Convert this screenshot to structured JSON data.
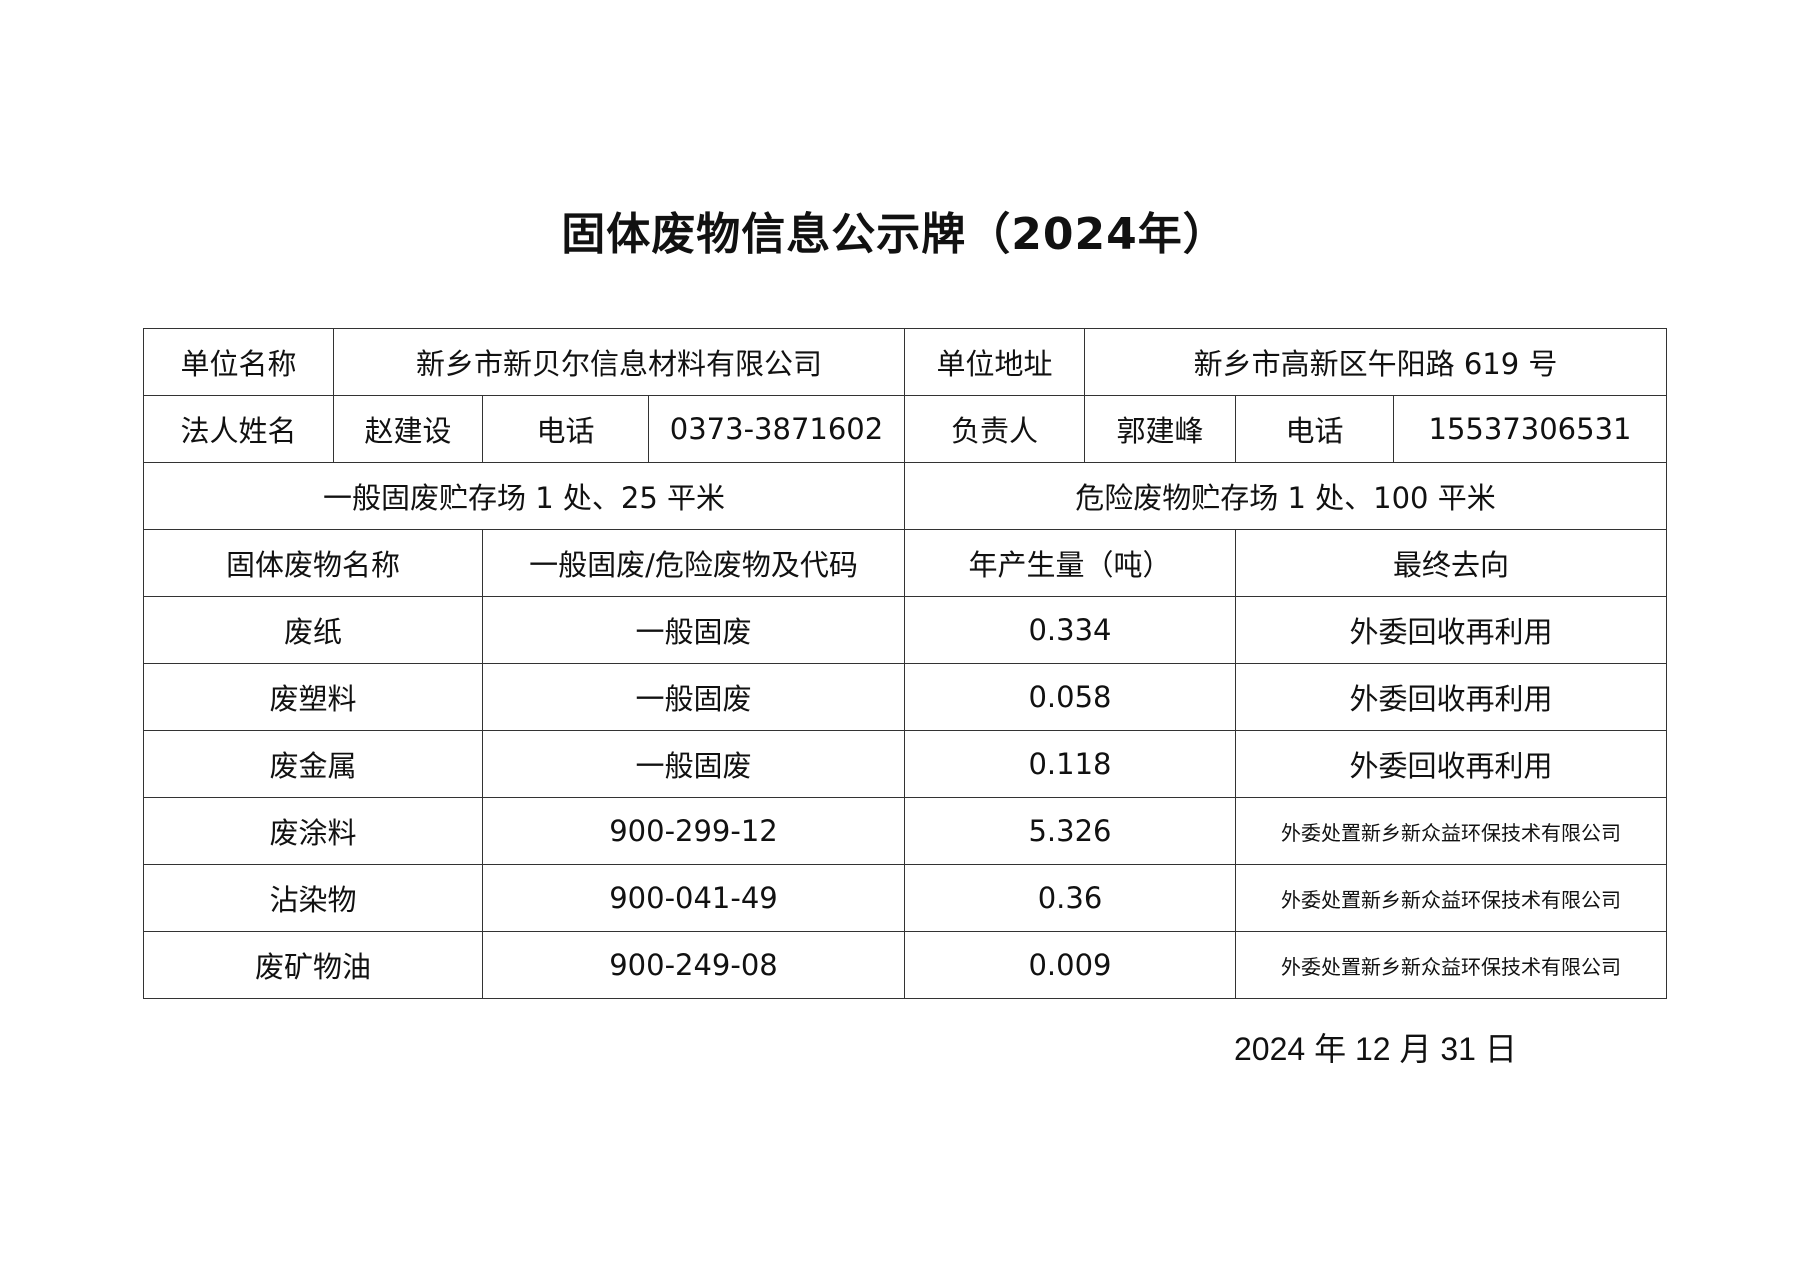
{
  "title": "固体废物信息公示牌（2024年）",
  "info": {
    "unit_name_label": "单位名称",
    "unit_name": "新乡市新贝尔信息材料有限公司",
    "address_label": "单位地址",
    "address": "新乡市高新区午阳路 619 号",
    "legal_label": "法人姓名",
    "legal_name": "赵建设",
    "phone_label": "电话",
    "legal_phone": "0373-3871602",
    "manager_label": "负责人",
    "manager_name": "郭建峰",
    "manager_phone": "15537306531",
    "general_storage": "一般固废贮存场 1 处、25 平米",
    "hazardous_storage": "危险废物贮存场 1 处、100 平米"
  },
  "headers": [
    "固体废物名称",
    "一般固废/危险废物及代码",
    "年产生量（吨）",
    "最终去向"
  ],
  "rows": [
    {
      "name": "废纸",
      "code": "一般固废",
      "amount": "0.334",
      "dest": "外委回收再利用"
    },
    {
      "name": "废塑料",
      "code": "一般固废",
      "amount": "0.058",
      "dest": "外委回收再利用"
    },
    {
      "name": "废金属",
      "code": "一般固废",
      "amount": "0.118",
      "dest": "外委回收再利用"
    },
    {
      "name": "废涂料",
      "code": "900-299-12",
      "amount": "5.326",
      "dest": "外委处置新乡新众益环保技术有限公司"
    },
    {
      "name": "沾染物",
      "code": "900-041-49",
      "amount": "0.36",
      "dest": "外委处置新乡新众益环保技术有限公司"
    },
    {
      "name": "废矿物油",
      "code": "900-249-08",
      "amount": "0.009",
      "dest": "外委处置新乡新众益环保技术有限公司"
    }
  ],
  "date": "2024 年 12 月  31 日"
}
